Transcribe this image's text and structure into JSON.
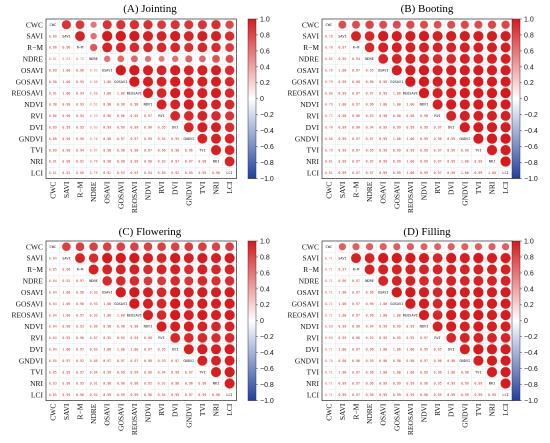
{
  "colorbar": {
    "ticks": [
      "1.0",
      "0.8",
      "0.6",
      "0.4",
      "0.2",
      "0",
      "−0.2",
      "−0.4",
      "−0.6",
      "−0.8",
      "−1.0"
    ]
  },
  "colors": {
    "positive": "#d7191c",
    "negative": "#1f3fa0",
    "neutral": "#ffffff",
    "text": "#c0392b"
  },
  "chart_data": [
    {
      "type": "heatmap",
      "title": "(A) Jointing",
      "variables": [
        "CWC",
        "SAVI",
        "R−M",
        "NDRE",
        "OSAVI",
        "GOSAVI",
        "REOSAVI",
        "NDVI",
        "RVI",
        "DVI",
        "GNDVI",
        "TVI",
        "NRI",
        "LCI"
      ],
      "diagonal_labels": [
        "CWC",
        "SAVI",
        "R−M",
        "NDRE",
        "OSAVI",
        "GOSAVI",
        "REOSAVI",
        "NDVI",
        "RVI",
        "DVI",
        "GNDVI",
        "TVI",
        "NRI",
        "LCI"
      ],
      "lower_triangle": [
        [
          0.89
        ],
        [
          0.86,
          0.96
        ],
        [
          0.61,
          0.63,
          0.72
        ],
        [
          0.89,
          1.0,
          0.96,
          0.63
        ],
        [
          0.9,
          1.0,
          0.95,
          0.66,
          1.0
        ],
        [
          0.91,
          1.0,
          0.94,
          0.68,
          1.0,
          1.0
        ],
        [
          0.9,
          0.98,
          0.93,
          0.62,
          0.98,
          0.98,
          0.98
        ],
        [
          0.86,
          0.96,
          0.94,
          0.59,
          0.96,
          0.96,
          0.95,
          0.97
        ],
        [
          0.89,
          0.99,
          0.95,
          0.63,
          0.99,
          0.99,
          0.99,
          0.96,
          0.95
        ],
        [
          0.88,
          0.96,
          0.9,
          0.7,
          0.96,
          0.97,
          0.97,
          0.99,
          0.94,
          0.95
        ],
        [
          0.89,
          0.98,
          0.94,
          0.67,
          0.98,
          0.98,
          0.98,
          0.97,
          0.96,
          0.98,
          0.96
        ],
        [
          0.91,
          0.98,
          0.92,
          0.76,
          0.98,
          0.98,
          0.99,
          0.96,
          0.93,
          0.97,
          0.97,
          0.98
        ],
        [
          0.81,
          0.92,
          0.86,
          0.79,
          0.92,
          0.93,
          0.93,
          0.94,
          0.89,
          0.92,
          0.95,
          0.95,
          0.96
        ]
      ],
      "upper_triangle_encoding": "circle size and color show correlation; same values as lower triangle",
      "zlim": [
        -1.0,
        1.0
      ]
    },
    {
      "type": "heatmap",
      "title": "(B) Booting",
      "variables": [
        "CWC",
        "SAVI",
        "R−M",
        "NDRE",
        "OSAVI",
        "GOSAVI",
        "REOSAVI",
        "NDVI",
        "RVI",
        "DVI",
        "GNDVI",
        "TVI",
        "NRI",
        "LCI"
      ],
      "diagonal_labels": [
        "CWC",
        "SAVI",
        "R−M",
        "NDRE",
        "OSAVI",
        "GOSAVI",
        "REOSAVI",
        "NDVI",
        "RVI",
        "DVI",
        "GNDVI",
        "TVI",
        "NRI",
        "LCI"
      ],
      "lower_triangle": [
        [
          0.78
        ],
        [
          0.78,
          0.97
        ],
        [
          0.82,
          0.95,
          0.94
        ],
        [
          0.78,
          1.0,
          0.97,
          0.95
        ],
        [
          0.79,
          0.99,
          0.98,
          0.96,
          0.99
        ],
        [
          0.8,
          0.99,
          0.97,
          0.97,
          0.99,
          1.0
        ],
        [
          0.79,
          1.0,
          0.97,
          0.96,
          1.0,
          1.0,
          1.0
        ],
        [
          0.77,
          0.98,
          0.96,
          0.93,
          0.98,
          0.98,
          0.98,
          0.98
        ],
        [
          0.78,
          0.99,
          0.96,
          0.94,
          0.99,
          0.99,
          0.99,
          0.99,
          0.97
        ],
        [
          0.8,
          0.99,
          0.97,
          0.97,
          0.99,
          1.0,
          1.0,
          0.99,
          0.98,
          0.99
        ],
        [
          0.79,
          0.99,
          0.97,
          0.95,
          0.99,
          0.99,
          0.99,
          0.99,
          0.97,
          0.99,
          0.99
        ],
        [
          0.81,
          0.99,
          0.97,
          0.97,
          0.99,
          0.99,
          1.0,
          0.99,
          0.97,
          0.99,
          1.0,
          0.99
        ],
        [
          0.81,
          0.99,
          0.97,
          0.97,
          0.99,
          0.99,
          1.0,
          0.99,
          0.97,
          0.99,
          1.0,
          0.99,
          1.0
        ]
      ],
      "upper_triangle_encoding": "circle size and color show correlation; same values as lower triangle",
      "zlim": [
        -1.0,
        1.0
      ]
    },
    {
      "type": "heatmap",
      "title": "(C) Flowering",
      "variables": [
        "CWC",
        "SAVI",
        "R−M",
        "NDRE",
        "OSAVI",
        "GOSAVI",
        "REOSAVI",
        "NDVI",
        "RVI",
        "DVI",
        "GNDVI",
        "TVI",
        "NRI",
        "LCI"
      ],
      "diagonal_labels": [
        "CWC",
        "SAVI",
        "R−M",
        "NDRE",
        "OSAVI",
        "GOSAVI",
        "REOSAVI",
        "NDVI",
        "RVI",
        "DVI",
        "GNDVI",
        "TVI",
        "NRI",
        "LCI"
      ],
      "lower_triangle": [
        [
          0.84
        ],
        [
          0.85,
          0.96
        ],
        [
          0.84,
          0.92,
          0.97
        ],
        [
          0.84,
          1.0,
          0.96,
          0.93
        ],
        [
          0.84,
          1.0,
          0.96,
          0.93,
          1.0
        ],
        [
          0.84,
          1.0,
          0.97,
          0.93,
          1.0,
          1.0
        ],
        [
          0.84,
          0.98,
          0.93,
          0.86,
          0.98,
          0.98,
          0.98
        ],
        [
          0.84,
          0.95,
          0.96,
          0.87,
          0.95,
          0.95,
          0.94,
          0.98
        ],
        [
          0.84,
          1.0,
          0.97,
          0.93,
          1.0,
          1.0,
          1.0,
          0.97,
          0.95
        ],
        [
          0.85,
          0.97,
          0.92,
          0.88,
          0.97,
          0.97,
          0.97,
          0.98,
          0.93,
          0.97
        ],
        [
          0.85,
          0.99,
          0.97,
          0.94,
          0.99,
          0.99,
          0.99,
          0.96,
          0.94,
          0.99,
          0.97
        ],
        [
          0.83,
          0.98,
          0.95,
          0.91,
          0.98,
          0.98,
          0.98,
          0.95,
          0.92,
          0.98,
          0.96,
          0.98
        ],
        [
          0.85,
          0.99,
          0.96,
          0.92,
          0.99,
          0.99,
          0.99,
          0.96,
          0.94,
          0.99,
          0.97,
          0.99,
          0.98
        ]
      ],
      "upper_triangle_encoding": "circle size and color show correlation; same values as lower triangle",
      "zlim": [
        -1.0,
        1.0
      ]
    },
    {
      "type": "heatmap",
      "title": "(D) Filling",
      "variables": [
        "CWC",
        "SAVI",
        "R−M",
        "NDRE",
        "OSAVI",
        "GOSAVI",
        "REOSAVI",
        "NDVI",
        "RVI",
        "DVI",
        "GNDVI",
        "TVI",
        "NRI",
        "LCI"
      ],
      "diagonal_labels": [
        "CWC",
        "SAVI",
        "R−M",
        "NDRE",
        "OSAVI",
        "GOSAVI",
        "REOSAVI",
        "NDVI",
        "RVI",
        "DVI",
        "GNDVI",
        "TVI",
        "NRI",
        "LCI"
      ],
      "lower_triangle": [
        [
          0.71
        ],
        [
          0.71,
          0.97
        ],
        [
          0.71,
          0.96,
          0.97
        ],
        [
          0.71,
          1.0,
          0.97,
          0.96
        ],
        [
          0.71,
          1.0,
          0.97,
          0.96,
          1.0
        ],
        [
          0.71,
          1.0,
          0.97,
          0.96,
          1.0,
          1.0
        ],
        [
          0.69,
          0.99,
          0.96,
          0.94,
          0.99,
          0.99,
          0.99
        ],
        [
          0.69,
          0.95,
          0.96,
          0.92,
          0.95,
          0.95,
          0.95,
          0.97
        ],
        [
          0.71,
          1.0,
          0.97,
          0.96,
          1.0,
          1.0,
          1.0,
          0.99,
          0.95
        ],
        [
          0.7,
          0.98,
          0.96,
          0.95,
          0.98,
          0.98,
          0.98,
          0.97,
          0.96,
          0.98
        ],
        [
          0.71,
          1.0,
          0.97,
          0.96,
          1.0,
          1.0,
          1.0,
          0.99,
          0.96,
          1.0,
          0.98
        ],
        [
          0.71,
          0.99,
          0.97,
          0.96,
          0.99,
          0.99,
          0.99,
          0.98,
          0.95,
          0.99,
          0.99,
          0.99
        ],
        [
          0.71,
          0.99,
          0.97,
          0.96,
          0.99,
          0.99,
          0.99,
          0.98,
          0.95,
          0.99,
          0.99,
          0.99,
          0.99
        ]
      ],
      "upper_triangle_encoding": "circle size and color show correlation; same values as lower triangle",
      "zlim": [
        -1.0,
        1.0
      ]
    }
  ]
}
